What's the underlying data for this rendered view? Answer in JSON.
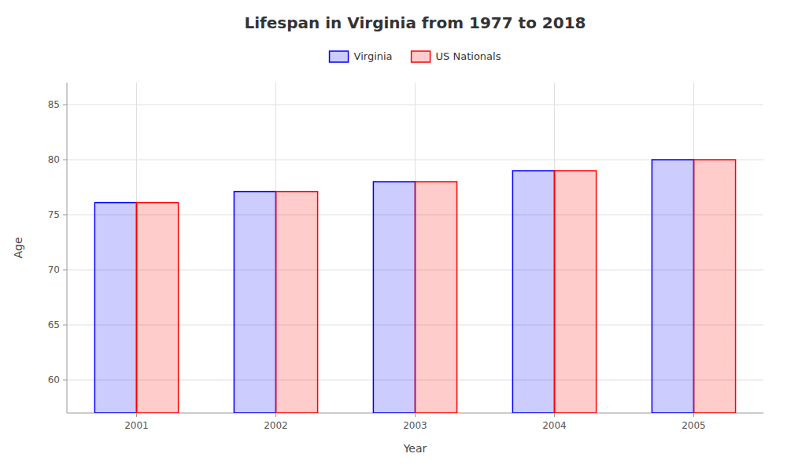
{
  "chart_data": {
    "type": "bar",
    "title": "Lifespan in Virginia from 1977 to 2018",
    "xlabel": "Year",
    "ylabel": "Age",
    "categories": [
      "2001",
      "2002",
      "2003",
      "2004",
      "2005"
    ],
    "series": [
      {
        "name": "Virginia",
        "color": "#0000ff",
        "values": [
          76.1,
          77.1,
          78.0,
          79.0,
          80.0
        ]
      },
      {
        "name": "US Nationals",
        "color": "#ff0000",
        "values": [
          76.1,
          77.1,
          78.0,
          79.0,
          80.0
        ]
      }
    ],
    "ylim": [
      57,
      87
    ],
    "yticks": [
      60,
      65,
      70,
      75,
      80,
      85
    ],
    "grid": true,
    "legend": "top"
  }
}
